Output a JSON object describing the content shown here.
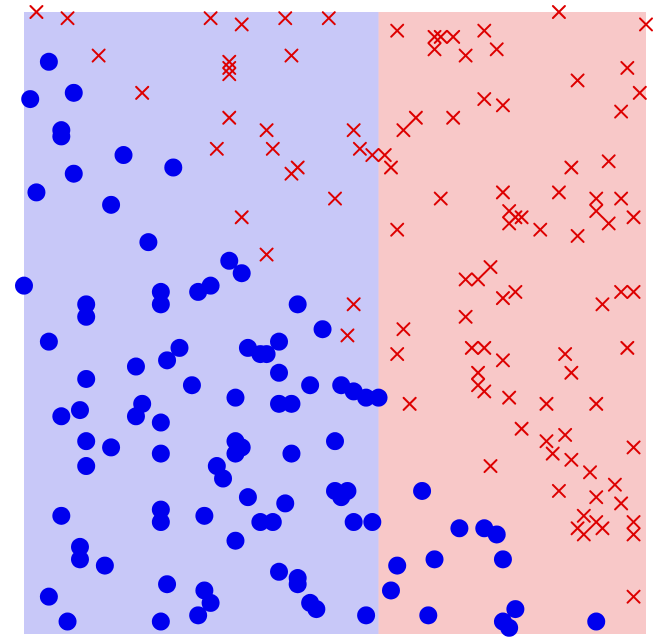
{
  "chart_data": {
    "type": "scatter",
    "title": "",
    "xlabel": "",
    "ylabel": "",
    "xlim": [
      0,
      1
    ],
    "ylim": [
      0,
      1
    ],
    "grid": false,
    "decision_boundary_x": 0.57,
    "regions": [
      {
        "side": "left",
        "color": "#c8c8f8"
      },
      {
        "side": "right",
        "color": "#f8c8c8"
      }
    ],
    "series": [
      {
        "marker": "circle",
        "color": "#0000ee",
        "points": [
          [
            0.04,
            0.92
          ],
          [
            0.01,
            0.86
          ],
          [
            0.08,
            0.87
          ],
          [
            0.06,
            0.81
          ],
          [
            0.06,
            0.8
          ],
          [
            0.16,
            0.77
          ],
          [
            0.08,
            0.74
          ],
          [
            0.02,
            0.71
          ],
          [
            0.24,
            0.75
          ],
          [
            0.14,
            0.69
          ],
          [
            0.2,
            0.63
          ],
          [
            0.33,
            0.6
          ],
          [
            0.35,
            0.58
          ],
          [
            0.0,
            0.56
          ],
          [
            0.22,
            0.55
          ],
          [
            0.28,
            0.55
          ],
          [
            0.3,
            0.56
          ],
          [
            0.1,
            0.53
          ],
          [
            0.22,
            0.53
          ],
          [
            0.44,
            0.53
          ],
          [
            0.1,
            0.51
          ],
          [
            0.48,
            0.49
          ],
          [
            0.04,
            0.47
          ],
          [
            0.25,
            0.46
          ],
          [
            0.36,
            0.46
          ],
          [
            0.38,
            0.45
          ],
          [
            0.39,
            0.45
          ],
          [
            0.41,
            0.47
          ],
          [
            0.23,
            0.44
          ],
          [
            0.18,
            0.43
          ],
          [
            0.41,
            0.42
          ],
          [
            0.1,
            0.41
          ],
          [
            0.27,
            0.4
          ],
          [
            0.46,
            0.4
          ],
          [
            0.51,
            0.4
          ],
          [
            0.53,
            0.39
          ],
          [
            0.55,
            0.38
          ],
          [
            0.57,
            0.38
          ],
          [
            0.34,
            0.38
          ],
          [
            0.19,
            0.37
          ],
          [
            0.41,
            0.37
          ],
          [
            0.43,
            0.37
          ],
          [
            0.09,
            0.36
          ],
          [
            0.18,
            0.35
          ],
          [
            0.06,
            0.35
          ],
          [
            0.22,
            0.34
          ],
          [
            0.1,
            0.31
          ],
          [
            0.14,
            0.3
          ],
          [
            0.34,
            0.31
          ],
          [
            0.5,
            0.31
          ],
          [
            0.35,
            0.3
          ],
          [
            0.22,
            0.29
          ],
          [
            0.34,
            0.29
          ],
          [
            0.43,
            0.29
          ],
          [
            0.31,
            0.27
          ],
          [
            0.1,
            0.27
          ],
          [
            0.32,
            0.25
          ],
          [
            0.64,
            0.23
          ],
          [
            0.5,
            0.23
          ],
          [
            0.51,
            0.22
          ],
          [
            0.52,
            0.23
          ],
          [
            0.36,
            0.22
          ],
          [
            0.42,
            0.21
          ],
          [
            0.22,
            0.2
          ],
          [
            0.06,
            0.19
          ],
          [
            0.22,
            0.18
          ],
          [
            0.29,
            0.19
          ],
          [
            0.38,
            0.18
          ],
          [
            0.4,
            0.18
          ],
          [
            0.53,
            0.18
          ],
          [
            0.56,
            0.18
          ],
          [
            0.7,
            0.17
          ],
          [
            0.74,
            0.17
          ],
          [
            0.76,
            0.16
          ],
          [
            0.34,
            0.15
          ],
          [
            0.09,
            0.14
          ],
          [
            0.09,
            0.12
          ],
          [
            0.13,
            0.11
          ],
          [
            0.6,
            0.11
          ],
          [
            0.66,
            0.12
          ],
          [
            0.77,
            0.12
          ],
          [
            0.41,
            0.1
          ],
          [
            0.44,
            0.09
          ],
          [
            0.44,
            0.08
          ],
          [
            0.23,
            0.08
          ],
          [
            0.29,
            0.07
          ],
          [
            0.59,
            0.07
          ],
          [
            0.04,
            0.06
          ],
          [
            0.3,
            0.05
          ],
          [
            0.46,
            0.05
          ],
          [
            0.79,
            0.04
          ],
          [
            0.28,
            0.03
          ],
          [
            0.47,
            0.04
          ],
          [
            0.55,
            0.03
          ],
          [
            0.65,
            0.03
          ],
          [
            0.07,
            0.02
          ],
          [
            0.22,
            0.02
          ],
          [
            0.77,
            0.02
          ],
          [
            0.78,
            0.01
          ],
          [
            0.92,
            0.02
          ]
        ]
      },
      {
        "marker": "x",
        "color": "#dd0000",
        "points": [
          [
            0.02,
            1.0
          ],
          [
            0.07,
            0.99
          ],
          [
            0.3,
            0.99
          ],
          [
            0.35,
            0.98
          ],
          [
            0.42,
            0.99
          ],
          [
            0.49,
            0.99
          ],
          [
            0.86,
            1.0
          ],
          [
            1.0,
            0.98
          ],
          [
            0.12,
            0.93
          ],
          [
            0.33,
            0.92
          ],
          [
            0.43,
            0.93
          ],
          [
            0.6,
            0.97
          ],
          [
            0.66,
            0.96
          ],
          [
            0.67,
            0.96
          ],
          [
            0.69,
            0.96
          ],
          [
            0.74,
            0.97
          ],
          [
            0.76,
            0.94
          ],
          [
            0.71,
            0.93
          ],
          [
            0.66,
            0.94
          ],
          [
            0.33,
            0.91
          ],
          [
            0.33,
            0.9
          ],
          [
            0.89,
            0.89
          ],
          [
            0.97,
            0.91
          ],
          [
            0.19,
            0.87
          ],
          [
            0.99,
            0.87
          ],
          [
            0.74,
            0.86
          ],
          [
            0.77,
            0.85
          ],
          [
            0.96,
            0.84
          ],
          [
            0.63,
            0.83
          ],
          [
            0.61,
            0.81
          ],
          [
            0.69,
            0.83
          ],
          [
            0.33,
            0.83
          ],
          [
            0.39,
            0.81
          ],
          [
            0.53,
            0.81
          ],
          [
            0.4,
            0.78
          ],
          [
            0.54,
            0.78
          ],
          [
            0.31,
            0.78
          ],
          [
            0.58,
            0.77
          ],
          [
            0.56,
            0.77
          ],
          [
            0.59,
            0.75
          ],
          [
            0.44,
            0.75
          ],
          [
            0.43,
            0.74
          ],
          [
            0.88,
            0.75
          ],
          [
            0.94,
            0.76
          ],
          [
            0.77,
            0.71
          ],
          [
            0.86,
            0.71
          ],
          [
            0.92,
            0.7
          ],
          [
            0.96,
            0.7
          ],
          [
            0.67,
            0.7
          ],
          [
            0.5,
            0.7
          ],
          [
            0.35,
            0.67
          ],
          [
            0.78,
            0.68
          ],
          [
            0.79,
            0.67
          ],
          [
            0.8,
            0.67
          ],
          [
            0.78,
            0.66
          ],
          [
            0.6,
            0.65
          ],
          [
            0.83,
            0.65
          ],
          [
            0.89,
            0.64
          ],
          [
            0.94,
            0.66
          ],
          [
            0.98,
            0.67
          ],
          [
            0.92,
            0.68
          ],
          [
            0.39,
            0.61
          ],
          [
            0.71,
            0.57
          ],
          [
            0.73,
            0.57
          ],
          [
            0.75,
            0.59
          ],
          [
            0.77,
            0.54
          ],
          [
            0.79,
            0.55
          ],
          [
            0.96,
            0.55
          ],
          [
            0.98,
            0.55
          ],
          [
            0.53,
            0.53
          ],
          [
            0.71,
            0.51
          ],
          [
            0.93,
            0.53
          ],
          [
            0.61,
            0.49
          ],
          [
            0.52,
            0.48
          ],
          [
            0.72,
            0.46
          ],
          [
            0.74,
            0.46
          ],
          [
            0.87,
            0.45
          ],
          [
            0.97,
            0.46
          ],
          [
            0.6,
            0.45
          ],
          [
            0.73,
            0.42
          ],
          [
            0.77,
            0.44
          ],
          [
            0.73,
            0.4
          ],
          [
            0.88,
            0.42
          ],
          [
            0.62,
            0.37
          ],
          [
            0.74,
            0.39
          ],
          [
            0.78,
            0.38
          ],
          [
            0.84,
            0.37
          ],
          [
            0.92,
            0.37
          ],
          [
            0.8,
            0.33
          ],
          [
            0.84,
            0.31
          ],
          [
            0.87,
            0.32
          ],
          [
            0.85,
            0.29
          ],
          [
            0.98,
            0.3
          ],
          [
            0.88,
            0.28
          ],
          [
            0.75,
            0.27
          ],
          [
            0.91,
            0.26
          ],
          [
            0.95,
            0.24
          ],
          [
            0.86,
            0.23
          ],
          [
            0.92,
            0.22
          ],
          [
            0.96,
            0.21
          ],
          [
            0.9,
            0.19
          ],
          [
            0.92,
            0.18
          ],
          [
            0.93,
            0.17
          ],
          [
            0.98,
            0.18
          ],
          [
            0.89,
            0.17
          ],
          [
            0.9,
            0.16
          ],
          [
            0.98,
            0.16
          ],
          [
            0.98,
            0.06
          ]
        ]
      }
    ]
  }
}
